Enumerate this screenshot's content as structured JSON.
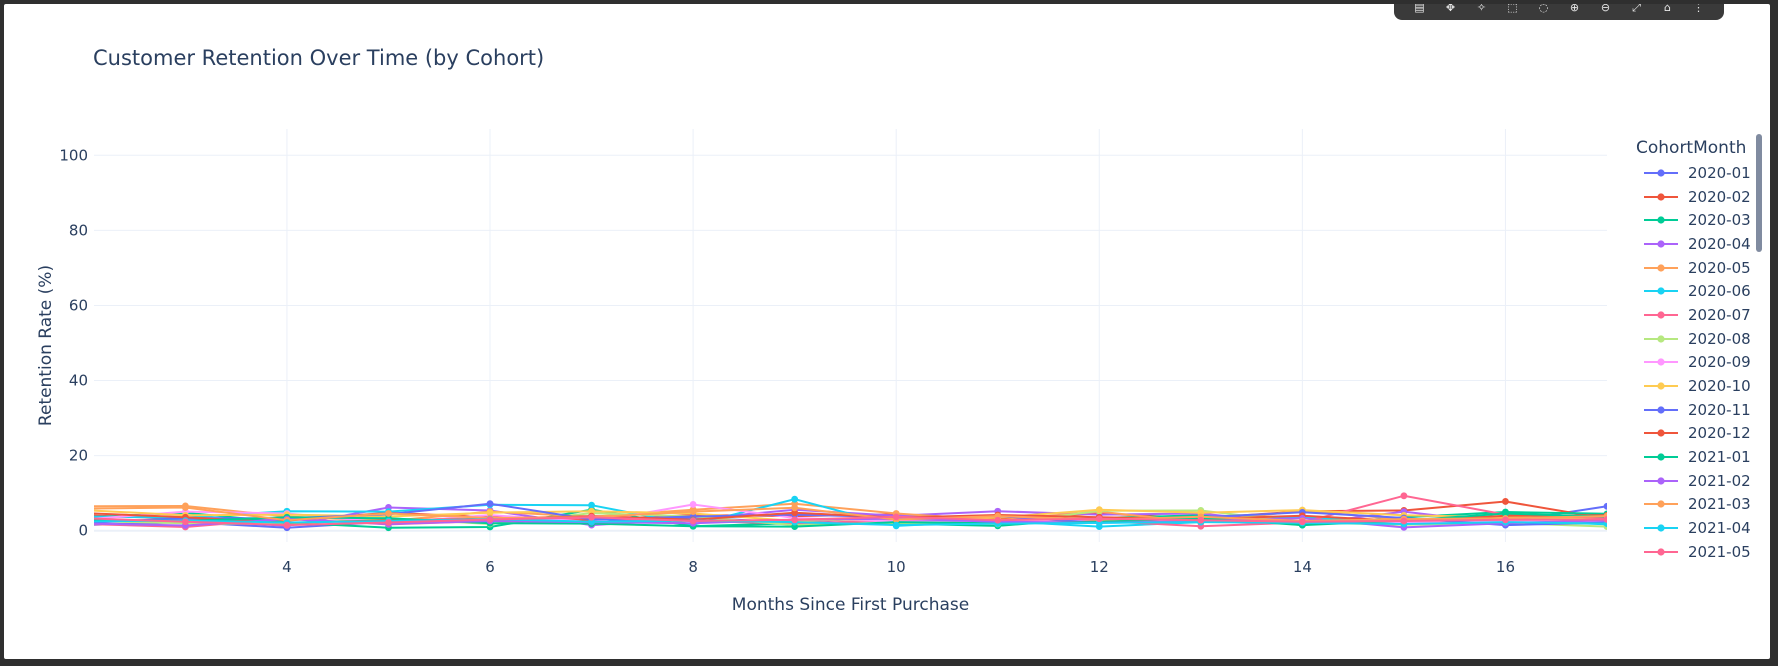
{
  "modebar": {
    "icons": [
      "camera-icon",
      "zoom-icon",
      "pan-icon",
      "box-select-icon",
      "lasso-icon",
      "zoom-in-icon",
      "zoom-out-icon",
      "autoscale-icon",
      "reset-icon",
      "more-icon"
    ],
    "glyphs": [
      "▤",
      "✥",
      "✧",
      "⬚",
      "◌",
      "⊕",
      "⊖",
      "⤢",
      "⌂",
      "⋮"
    ]
  },
  "chart_data": {
    "type": "line",
    "title": "Customer Retention Over Time (by Cohort)",
    "xlabel": "Months Since First Purchase",
    "ylabel": "Retention Rate (%)",
    "xlim": [
      2.1,
      17
    ],
    "ylim": [
      -3,
      107
    ],
    "xticks": [
      4,
      6,
      8,
      10,
      12,
      14,
      16
    ],
    "yticks": [
      0,
      20,
      40,
      60,
      80,
      100
    ],
    "grid": true,
    "legend_title": "CohortMonth",
    "legend_position": "right",
    "series": [
      {
        "name": "2020-01",
        "color": "#636efa",
        "x": [
          2,
          3,
          4,
          5,
          6,
          7,
          8,
          9,
          10,
          11,
          12,
          13,
          14,
          15,
          16,
          17
        ],
        "values": [
          1.5,
          2.3,
          0.8,
          2.4,
          3.1,
          2.6,
          3.5,
          2.2,
          3.8,
          2.5,
          3.0,
          2.8,
          3.6,
          1.9,
          2.4,
          6.5
        ]
      },
      {
        "name": "2020-02",
        "color": "#ef553b",
        "x": [
          2,
          3,
          4,
          5,
          6,
          7,
          8,
          9,
          10,
          11,
          12,
          13,
          14,
          15,
          16,
          17
        ],
        "values": [
          4.1,
          3.2,
          2.7,
          4.8,
          3.6,
          2.9,
          4.2,
          3.9,
          4.4,
          3.1,
          4.6,
          3.3,
          5.2,
          5.4,
          7.8,
          3.2
        ]
      },
      {
        "name": "2020-03",
        "color": "#00cc96",
        "x": [
          2,
          3,
          4,
          5,
          6,
          7,
          8,
          9,
          10,
          11,
          12,
          13,
          14,
          15,
          16,
          17
        ],
        "values": [
          3.5,
          4.8,
          2.2,
          0.8,
          1.0,
          5.6,
          1.2,
          2.0,
          1.9,
          1.3,
          3.4,
          4.1,
          1.5,
          3.6,
          5.0,
          4.5
        ]
      },
      {
        "name": "2020-04",
        "color": "#ab63fa",
        "x": [
          2,
          3,
          4,
          5,
          6,
          7,
          8,
          9,
          10,
          11,
          12,
          13,
          14,
          15,
          16,
          17
        ],
        "values": [
          2.2,
          3.0,
          1.3,
          6.2,
          5.4,
          1.5,
          3.1,
          5.6,
          4.0,
          5.2,
          4.3,
          4.6,
          1.8,
          5.1,
          1.9,
          2.5
        ]
      },
      {
        "name": "2020-05",
        "color": "#ffa15a",
        "x": [
          2,
          3,
          4,
          5,
          6,
          7,
          8,
          9,
          10,
          11,
          12,
          13,
          14,
          15,
          16,
          17
        ],
        "values": [
          6.5,
          6.6,
          3.8,
          2.6,
          5.1,
          3.7,
          5.6,
          7.2,
          4.6,
          2.8,
          5.1,
          2.2,
          5.4,
          3.0,
          3.7,
          2.8
        ]
      },
      {
        "name": "2020-06",
        "color": "#19d3f3",
        "x": [
          2,
          3,
          4,
          5,
          6,
          7,
          8,
          9,
          10,
          11,
          12,
          13,
          14,
          15,
          16,
          17
        ],
        "values": [
          3.8,
          3.5,
          5.2,
          5.1,
          6.9,
          6.8,
          1.6,
          8.4,
          1.3,
          2.6,
          1.1,
          2.3,
          3.6,
          1.9,
          2.8,
          1.7
        ]
      },
      {
        "name": "2020-07",
        "color": "#ff6692",
        "x": [
          2,
          3,
          4,
          5,
          6,
          7,
          8,
          9,
          10,
          11,
          12,
          13,
          14,
          15,
          16,
          17
        ],
        "values": [
          1.8,
          1.0,
          3.2,
          1.7,
          2.6,
          3.4,
          2.6,
          1.9,
          2.8,
          2.1,
          2.6,
          1.2,
          2.2,
          9.3,
          4.3,
          3.3
        ]
      },
      {
        "name": "2020-08",
        "color": "#b6e880",
        "x": [
          2,
          3,
          4,
          5,
          6,
          7,
          8,
          9,
          10,
          11,
          12,
          13,
          14,
          15,
          16,
          17
        ],
        "values": [
          2.6,
          2.0,
          1.8,
          3.3,
          1.8,
          4.7,
          3.8,
          1.5,
          2.1,
          1.8,
          5.3,
          5.4,
          2.2,
          1.6,
          2.1,
          1.1
        ]
      },
      {
        "name": "2020-09",
        "color": "#ff97ff",
        "x": [
          2,
          3,
          4,
          5,
          6,
          7,
          8,
          9,
          10,
          11,
          12,
          13,
          14,
          15,
          16,
          17
        ],
        "values": [
          3.0,
          5.1,
          4.6,
          2.1,
          4.2,
          2.3,
          7.0,
          3.4,
          2.5,
          2.3,
          3.1,
          2.7,
          2.6,
          2.2,
          2.6,
          2.2
        ]
      },
      {
        "name": "2020-10",
        "color": "#fecb52",
        "x": [
          2,
          3,
          4,
          5,
          6,
          7,
          8,
          9,
          10,
          11,
          12,
          13,
          14,
          15,
          16,
          17
        ],
        "values": [
          5.5,
          4.1,
          4.3,
          3.8,
          4.8,
          5.2,
          4.6,
          2.6,
          3.3,
          3.5,
          5.6,
          4.8,
          5.5,
          4.1,
          3.6,
          2.9
        ]
      },
      {
        "name": "2020-11",
        "color": "#636efa",
        "x": [
          2,
          3,
          4,
          5,
          6,
          7,
          8,
          9,
          10,
          11,
          12,
          13,
          14,
          15,
          16,
          17
        ],
        "values": [
          2.1,
          3.4,
          3.3,
          4.4,
          7.2,
          3.0,
          3.8,
          4.3,
          3.6,
          3.9,
          2.1,
          3.6,
          4.9,
          3.4,
          1.5,
          2.2
        ]
      },
      {
        "name": "2020-12",
        "color": "#ef553b",
        "x": [
          2,
          3,
          4,
          5,
          6,
          7,
          8,
          9,
          10,
          11,
          12,
          13,
          14,
          15,
          16,
          17
        ],
        "values": [
          4.7,
          3.6,
          2.1,
          2.8,
          3.2,
          3.9,
          2.9,
          4.8,
          3.5,
          4.2,
          3.6,
          3.1,
          4.0,
          2.6,
          4.0,
          4.1
        ]
      },
      {
        "name": "2021-01",
        "color": "#00cc96",
        "x": [
          2,
          3,
          4,
          5,
          6,
          7,
          8,
          9,
          10,
          11,
          12,
          13,
          14,
          15,
          16,
          17
        ],
        "values": [
          2.9,
          2.6,
          3.6,
          3.3,
          2.0,
          1.9,
          1.2,
          1.1,
          2.3,
          2.0,
          2.4,
          3.4,
          1.5,
          2.7,
          4.6,
          3.7
        ]
      },
      {
        "name": "2021-02",
        "color": "#ab63fa",
        "x": [
          2,
          3,
          4,
          5,
          6,
          7,
          8,
          9,
          10,
          11,
          12,
          13,
          14,
          15,
          16,
          17
        ],
        "values": [
          1.9,
          1.4,
          3.1,
          1.8,
          2.6,
          2.3,
          2.0,
          2.9,
          3.2,
          2.4,
          2.1,
          2.6,
          3.3,
          0.9,
          2.0,
          2.8
        ]
      },
      {
        "name": "2021-03",
        "color": "#ffa15a",
        "x": [
          2,
          3,
          4,
          5,
          6,
          7,
          8,
          9,
          10,
          11,
          12,
          13,
          14,
          15,
          16,
          17
        ],
        "values": [
          5.9,
          6.2,
          2.8,
          4.6,
          3.4,
          3.6,
          5.1,
          6.1,
          3.0,
          3.9,
          2.9,
          3.7,
          2.6,
          3.1,
          3.3,
          3.9
        ]
      },
      {
        "name": "2021-04",
        "color": "#19d3f3",
        "x": [
          2,
          3,
          4,
          5,
          6,
          7,
          8,
          9,
          10,
          11,
          12,
          13,
          14,
          15,
          16,
          17
        ],
        "values": [
          2.5,
          2.7,
          2.2,
          2.6,
          3.1,
          2.4,
          2.7,
          2.3,
          1.5,
          1.9,
          2.1,
          2.3,
          2.1,
          1.8,
          2.3,
          1.9
        ]
      },
      {
        "name": "2021-05",
        "color": "#ff6692",
        "x": [
          2,
          3,
          4,
          5,
          6,
          7,
          8,
          9,
          10,
          11,
          12,
          13,
          14,
          15,
          16,
          17
        ],
        "values": [
          3.3,
          2.4,
          1.5,
          2.2,
          3.0,
          3.6,
          2.6,
          2.9,
          3.7,
          2.8,
          3.2,
          2.8,
          2.4,
          2.6,
          2.9,
          3.0
        ]
      }
    ]
  }
}
